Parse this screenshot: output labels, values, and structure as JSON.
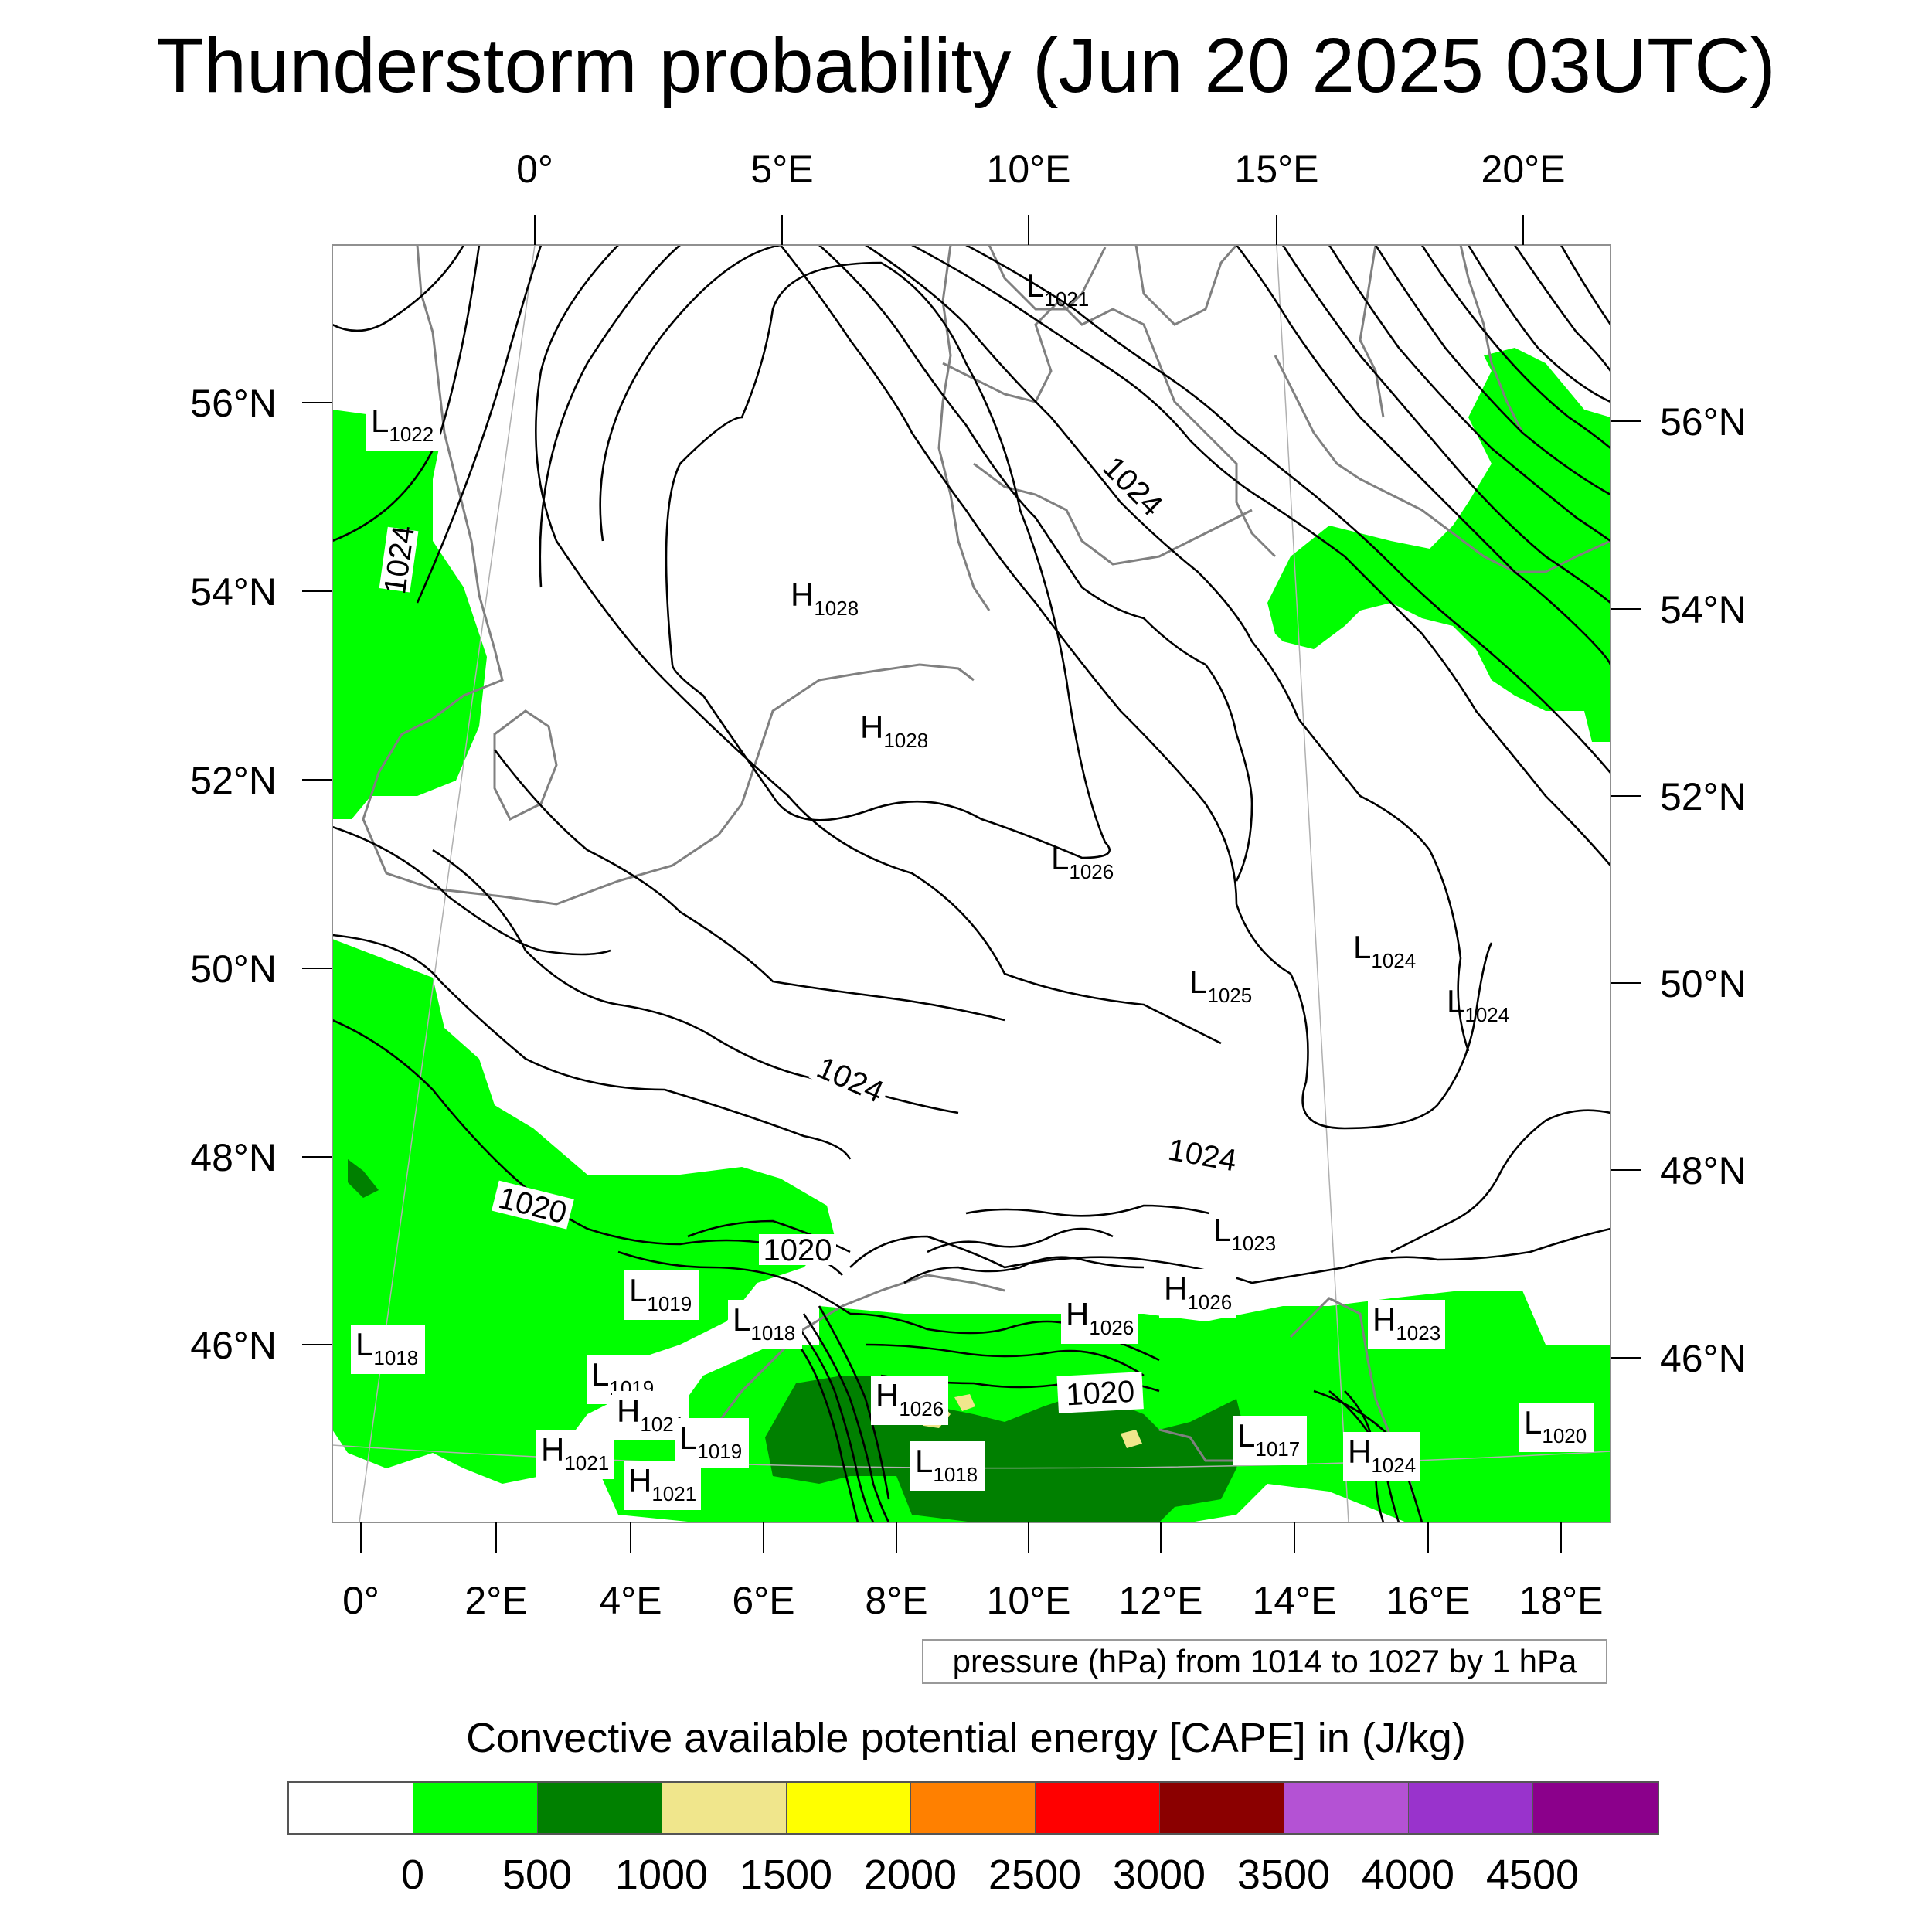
{
  "title": "Thunderstorm probability (Jun 20 2025 03UTC)",
  "top_longitude_labels": [
    "0°",
    "5°E",
    "10°E",
    "15°E",
    "20°E"
  ],
  "bottom_longitude_labels": [
    "0°",
    "2°E",
    "4°E",
    "6°E",
    "8°E",
    "10°E",
    "12°E",
    "14°E",
    "16°E",
    "18°E"
  ],
  "left_latitude_labels": [
    "56°N",
    "54°N",
    "52°N",
    "50°N",
    "48°N",
    "46°N"
  ],
  "right_latitude_labels": [
    "56°N",
    "54°N",
    "52°N",
    "50°N",
    "48°N",
    "46°N"
  ],
  "pressure_note": "pressure (hPa) from 1014 to 1027 by 1 hPa",
  "isobar_labels": [
    "1024",
    "1024",
    "1024",
    "1024",
    "1020",
    "1020",
    "1020"
  ],
  "pressure_centers": [
    {
      "type": "L",
      "value": "1021"
    },
    {
      "type": "L",
      "value": "1022"
    },
    {
      "type": "H",
      "value": "1028"
    },
    {
      "type": "H",
      "value": "1028"
    },
    {
      "type": "L",
      "value": "1026"
    },
    {
      "type": "L",
      "value": "1024"
    },
    {
      "type": "L",
      "value": "1025"
    },
    {
      "type": "L",
      "value": "1024"
    },
    {
      "type": "L",
      "value": "1023"
    },
    {
      "type": "H",
      "value": "1026"
    },
    {
      "type": "L",
      "value": "1019"
    },
    {
      "type": "H",
      "value": "1026"
    },
    {
      "type": "L",
      "value": "1018"
    },
    {
      "type": "H",
      "value": "1023"
    },
    {
      "type": "L",
      "value": "1018"
    },
    {
      "type": "L",
      "value": "1019"
    },
    {
      "type": "H",
      "value": "1026"
    },
    {
      "type": "H",
      "value": "1021"
    },
    {
      "type": "L",
      "value": "1019"
    },
    {
      "type": "H",
      "value": "1021"
    },
    {
      "type": "H",
      "value": "1021"
    },
    {
      "type": "L",
      "value": "1018"
    },
    {
      "type": "L",
      "value": "1017"
    },
    {
      "type": "H",
      "value": "1024"
    },
    {
      "type": "L",
      "value": "1020"
    }
  ],
  "colorbar": {
    "title": "Convective available potential energy [CAPE] in (J/kg)",
    "colors": [
      "#ffffff",
      "#00ff00",
      "#008000",
      "#f0e68c",
      "#ffff00",
      "#ff8000",
      "#ff0000",
      "#8b0000",
      "#b452d4",
      "#9933cc",
      "#8b008b"
    ],
    "ticks": [
      "0",
      "500",
      "1000",
      "1500",
      "2000",
      "2500",
      "3000",
      "3500",
      "4000",
      "4500"
    ]
  },
  "colors": {
    "coastline": "#808080",
    "isobar": "#000000",
    "cape_low": "#00ff00",
    "cape_mid": "#008000",
    "cape_high": "#f0e68c"
  }
}
